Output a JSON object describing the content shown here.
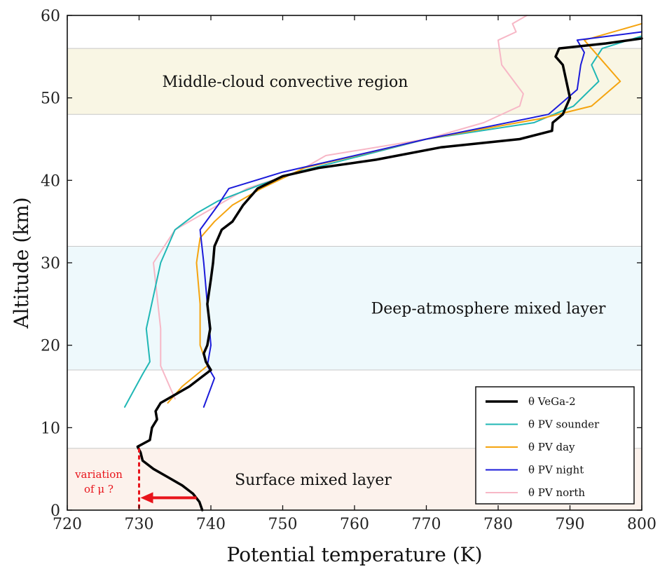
{
  "chart_data": {
    "type": "line",
    "xlabel": "Potential temperature (K)",
    "ylabel": "Altitude (km)",
    "xlim": [
      720,
      800
    ],
    "ylim": [
      0,
      60
    ],
    "xticks": [
      720,
      730,
      740,
      750,
      760,
      770,
      780,
      790,
      800
    ],
    "yticks": [
      0,
      10,
      20,
      30,
      40,
      50,
      60
    ],
    "grid": false,
    "legend_position": "bottom-right",
    "regions": [
      {
        "label": "Middle-cloud convective region",
        "y_range": [
          48,
          56
        ],
        "color": "#f9f6e4"
      },
      {
        "label": "Deep-atmosphere mixed layer",
        "y_range": [
          17,
          32
        ],
        "color": "#eef9fc"
      },
      {
        "label": "Surface mixed layer",
        "y_range": [
          0,
          7.5
        ],
        "color": "#fcf2ec"
      }
    ],
    "annotation": {
      "line1": "variation",
      "line2": "of μ ?",
      "x": 730,
      "arrow_from": [
        738,
        1.5
      ],
      "arrow_to": [
        730,
        1.5
      ],
      "color": "#e8141b"
    },
    "series": [
      {
        "name": "θ VeGa-2",
        "color": "#000000",
        "width": 3.5,
        "points": [
          [
            738.8,
            0
          ],
          [
            738.4,
            1
          ],
          [
            737.5,
            2
          ],
          [
            736.0,
            3
          ],
          [
            734.0,
            4
          ],
          [
            732.0,
            5
          ],
          [
            730.5,
            6
          ],
          [
            730.2,
            7
          ],
          [
            729.8,
            7.7
          ],
          [
            731.5,
            8.5
          ],
          [
            731.8,
            10
          ],
          [
            732.5,
            11
          ],
          [
            732.3,
            12
          ],
          [
            733.0,
            13
          ],
          [
            735.0,
            14
          ],
          [
            737.0,
            15
          ],
          [
            738.8,
            16.2
          ],
          [
            740.0,
            17.0
          ],
          [
            739.3,
            18
          ],
          [
            739.0,
            19
          ],
          [
            739.5,
            20
          ],
          [
            739.9,
            22
          ],
          [
            739.5,
            25
          ],
          [
            740.0,
            28
          ],
          [
            740.3,
            30
          ],
          [
            740.5,
            32
          ],
          [
            741.0,
            33
          ],
          [
            741.5,
            34
          ],
          [
            743.0,
            35
          ],
          [
            744.5,
            37
          ],
          [
            746.5,
            39
          ],
          [
            750.0,
            40.5
          ],
          [
            755.0,
            41.5
          ],
          [
            763.0,
            42.5
          ],
          [
            772.0,
            44
          ],
          [
            783.0,
            45
          ],
          [
            787.5,
            46
          ],
          [
            787.6,
            47
          ],
          [
            789.0,
            48
          ],
          [
            790.0,
            50
          ],
          [
            789.5,
            52
          ],
          [
            789.0,
            54
          ],
          [
            788.0,
            55
          ],
          [
            788.5,
            56
          ],
          [
            795.0,
            56.6
          ],
          [
            800,
            57.2
          ]
        ]
      },
      {
        "name": "θ PV sounder",
        "color": "#20b7b5",
        "width": 2,
        "points": [
          [
            728.0,
            12.5
          ],
          [
            730.5,
            16.5
          ],
          [
            731.5,
            18
          ],
          [
            731.0,
            22
          ],
          [
            733.0,
            30
          ],
          [
            735.0,
            34
          ],
          [
            738.0,
            36
          ],
          [
            741.0,
            37.5
          ],
          [
            747.0,
            39.5
          ],
          [
            752.0,
            41
          ],
          [
            770.0,
            45
          ],
          [
            785.0,
            47
          ],
          [
            790.5,
            49
          ],
          [
            794.0,
            52
          ],
          [
            793.0,
            54
          ],
          [
            794.5,
            56
          ],
          [
            800,
            57.5
          ]
        ]
      },
      {
        "name": "θ PV day",
        "color": "#f5a40f",
        "width": 2,
        "points": [
          [
            734.0,
            13
          ],
          [
            736.0,
            15
          ],
          [
            739.5,
            17.5
          ],
          [
            738.5,
            20
          ],
          [
            738.5,
            25
          ],
          [
            738.0,
            30
          ],
          [
            738.5,
            33
          ],
          [
            740.5,
            35
          ],
          [
            743.0,
            37
          ],
          [
            747.0,
            39
          ],
          [
            753.0,
            41.5
          ],
          [
            770.0,
            45
          ],
          [
            786.0,
            47.5
          ],
          [
            793.0,
            49
          ],
          [
            797.0,
            52
          ],
          [
            794.0,
            55
          ],
          [
            792.0,
            57
          ],
          [
            800,
            59
          ]
        ]
      },
      {
        "name": "θ PV night",
        "color": "#1b1bda",
        "width": 2,
        "points": [
          [
            739.0,
            12.5
          ],
          [
            740.5,
            16
          ],
          [
            739.5,
            17.5
          ],
          [
            740.0,
            20
          ],
          [
            739.5,
            25
          ],
          [
            739.0,
            30
          ],
          [
            738.5,
            34
          ],
          [
            741.0,
            37
          ],
          [
            742.5,
            39
          ],
          [
            750.0,
            41
          ],
          [
            770.0,
            45
          ],
          [
            787.0,
            48
          ],
          [
            791.0,
            51
          ],
          [
            791.5,
            54
          ],
          [
            792.0,
            55.5
          ],
          [
            791.0,
            57
          ],
          [
            800,
            58
          ]
        ]
      },
      {
        "name": "θ PV north",
        "color": "#f7b7c6",
        "width": 2,
        "points": [
          [
            735.0,
            13.5
          ],
          [
            733.0,
            17.5
          ],
          [
            733.0,
            22
          ],
          [
            732.0,
            30
          ],
          [
            735.0,
            34
          ],
          [
            739.0,
            36
          ],
          [
            745.0,
            39
          ],
          [
            752.0,
            41
          ],
          [
            756.0,
            43
          ],
          [
            770.0,
            45
          ],
          [
            778.0,
            47
          ],
          [
            783.0,
            49
          ],
          [
            783.5,
            50.5
          ],
          [
            780.5,
            54
          ],
          [
            780.0,
            57
          ],
          [
            782.5,
            58
          ],
          [
            782.0,
            59
          ],
          [
            784.0,
            60
          ]
        ]
      }
    ]
  }
}
